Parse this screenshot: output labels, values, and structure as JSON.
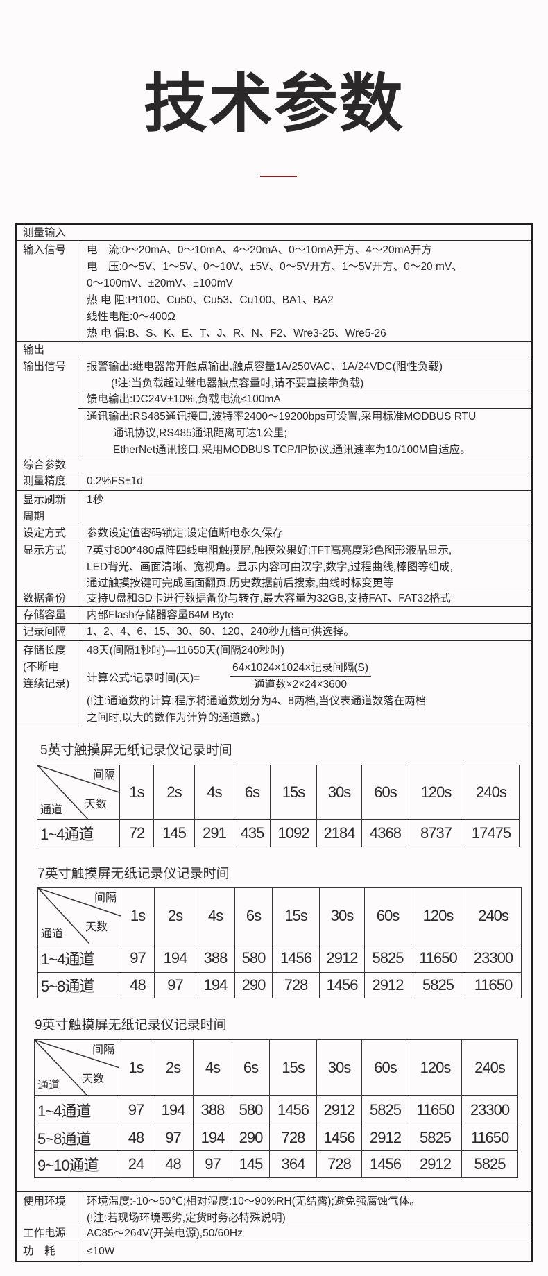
{
  "page_title": "技术参数",
  "colors": {
    "accent_line": "#8f1b1e",
    "text": "#2b2a2a",
    "border": "#231f1f"
  },
  "spec": {
    "measure_input": {
      "label": "测量输入"
    },
    "input_signal": {
      "label": "输入信号",
      "lines": [
        "电　流:0～20mA、0～10mA、4～20mA、0～10mA开方、4～20mA开方",
        "电　压:0～5V、1～5V、0～10V、±5V、0～5V开方、1～5V开方、0～20 mV、",
        "0～100mV、±20mV、±100mV",
        "热 电 阻:Pt100、Cu50、Cu53、Cu100、BA1、BA2",
        "线性电阻:0～400Ω",
        "热 电 偶:B、S、K、E、T、J、R、N、F2、Wre3-25、Wre5-26"
      ]
    },
    "output": {
      "label": "输出"
    },
    "output_signal": {
      "label": "输出信号",
      "alarm": [
        "报警输出:继电器常开触点输出,触点容量1A/250VAC、1A/24VDC(阻性负载)",
        "(!注:当负载超过继电器触点容量时,请不要直接带负载)"
      ],
      "feed": "馈电输出:DC24V±10%,负载电流≤100mA",
      "comm": [
        "通讯输出:RS485通讯接口,波特率2400～19200bps可设置,采用标准MODBUS RTU",
        "通讯协议,RS485通讯距离可达1公里;",
        "EtherNet通讯接口,采用MODBUS TCP/IP协议,通讯速率为10/100M自适应。"
      ]
    },
    "general": {
      "label": "综合参数"
    },
    "accuracy": {
      "label": "测量精度",
      "value": "0.2%FS±1d"
    },
    "refresh": {
      "label_lines": [
        "显示刷新",
        "周期"
      ],
      "value": "1秒"
    },
    "setting": {
      "label": "设定方式",
      "value": "参数设定值密码锁定;设定值断电永久保存"
    },
    "display": {
      "label": "显示方式",
      "lines": [
        "7英寸800*480点阵四线电阻触摸屏,触摸效果好;TFT高亮度彩色图形液晶显示,",
        "LED背光、画面清晰、宽视角。显示内容可由汉字,数字,过程曲线,棒图等组成,",
        "通过触摸按键可完成画面翻页,历史数据前后搜索,曲线时标变更等"
      ]
    },
    "backup": {
      "label": "数据备份",
      "value": "支持U盘和SD卡进行数据备份与转存,最大容量为32GB,支持FAT、FAT32格式"
    },
    "capacity": {
      "label": "存储容量",
      "value": "内部Flash存储器容量64M Byte"
    },
    "interval": {
      "label": "记录间隔",
      "value": "1、2、4、6、15、30、60、120、240秒九档可供选择。"
    },
    "storage": {
      "label_lines": [
        "存储长度",
        "(不断电",
        "连续记录)"
      ],
      "range": "48天(间隔1秒时)—11650天(间隔240秒时)",
      "formula_label": "计算公式:记录时间(天)=",
      "formula_numerator": "64×1024×1024×记录间隔(S)",
      "formula_denominator": "通道数×2×24×3600",
      "note": [
        "(!注:通道数的计算:程序将通道数划分为4、8两档,当仪表通道数落在两档",
        "之间时,以大的数作为计算的通道数。)"
      ]
    },
    "environment": {
      "label": "使用环境",
      "lines": [
        "环境温度:-10～50℃;相对湿度:10～90%RH(无结露);避免强腐蚀气体。",
        "(!注:若现场环境恶劣,定货时务必特殊说明)"
      ]
    },
    "power": {
      "label": "工作电源",
      "value": "AC85～264V(开关电源),50/60Hz"
    },
    "consumption": {
      "label": "功　耗",
      "value": "≤10W"
    }
  },
  "record_tables": [
    {
      "title": "5英寸触摸屏无纸记录仪记录时间",
      "corner": {
        "interval": "间隔",
        "days": "天数",
        "channel": "通道"
      },
      "intervals": [
        "1s",
        "2s",
        "4s",
        "6s",
        "15s",
        "30s",
        "60s",
        "120s",
        "240s"
      ],
      "rows": [
        {
          "channels": "1~4通道",
          "values": [
            "72",
            "145",
            "291",
            "435",
            "1092",
            "2184",
            "4368",
            "8737",
            "17475"
          ]
        }
      ]
    },
    {
      "title": "7英寸触摸屏无纸记录仪记录时间",
      "corner": {
        "interval": "间隔",
        "days": "天数",
        "channel": "通道"
      },
      "intervals": [
        "1s",
        "2s",
        "4s",
        "6s",
        "15s",
        "30s",
        "60s",
        "120s",
        "240s"
      ],
      "rows": [
        {
          "channels": "1~4通道",
          "values": [
            "97",
            "194",
            "388",
            "580",
            "1456",
            "2912",
            "5825",
            "11650",
            "23300"
          ]
        },
        {
          "channels": "5~8通道",
          "values": [
            "48",
            "97",
            "194",
            "290",
            "728",
            "1456",
            "2912",
            "5825",
            "11650"
          ]
        }
      ]
    },
    {
      "title": "9英寸触摸屏无纸记录仪记录时间",
      "corner": {
        "interval": "间隔",
        "days": "天数",
        "channel": "通道"
      },
      "intervals": [
        "1s",
        "2s",
        "4s",
        "6s",
        "15s",
        "30s",
        "60s",
        "120s",
        "240s"
      ],
      "rows": [
        {
          "channels": "1~4通道",
          "values": [
            "97",
            "194",
            "388",
            "580",
            "1456",
            "2912",
            "5825",
            "11650",
            "23300"
          ]
        },
        {
          "channels": "5~8通道",
          "values": [
            "48",
            "97",
            "194",
            "290",
            "728",
            "1456",
            "2912",
            "5825",
            "11650"
          ]
        },
        {
          "channels": "9~10通道",
          "values": [
            "24",
            "48",
            "97",
            "145",
            "364",
            "728",
            "1456",
            "2912",
            "5825"
          ]
        }
      ]
    }
  ]
}
